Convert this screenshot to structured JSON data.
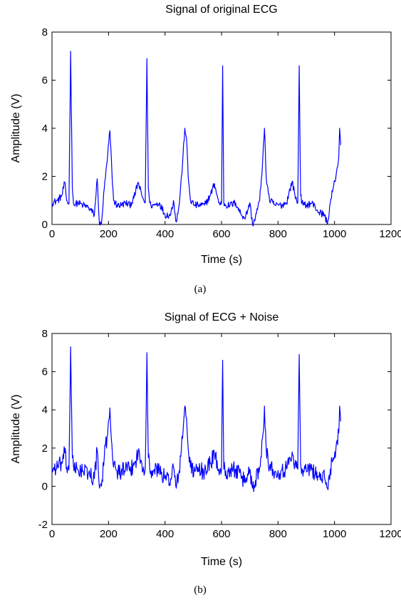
{
  "chart_data": [
    {
      "type": "line",
      "title": "Signal of original ECG",
      "xlabel": "Time (s)",
      "ylabel": "Amplitude (V)",
      "caption": "(a)",
      "xlim": [
        0,
        1200
      ],
      "ylim": [
        0,
        8
      ],
      "xticks": [
        0,
        200,
        400,
        600,
        800,
        1000,
        1200
      ],
      "yticks": [
        0,
        2,
        4,
        6,
        8
      ],
      "grid": false,
      "color": "#0000ff",
      "noise": 0.15,
      "x": [
        0,
        20,
        35,
        45,
        52,
        60,
        66,
        72,
        78,
        90,
        110,
        130,
        150,
        160,
        168,
        175,
        185,
        195,
        205,
        212,
        218,
        230,
        245,
        260,
        275,
        290,
        305,
        318,
        330,
        336,
        341,
        346,
        350,
        360,
        380,
        400,
        420,
        430,
        440,
        450,
        462,
        470,
        476,
        482,
        490,
        505,
        520,
        540,
        560,
        575,
        590,
        600,
        604,
        608,
        615,
        630,
        650,
        670,
        685,
        700,
        710,
        720,
        735,
        745,
        752,
        758,
        770,
        790,
        810,
        830,
        850,
        860,
        870,
        875,
        880,
        885,
        890,
        900,
        920,
        945,
        965,
        975,
        985,
        995,
        1005,
        1015,
        1018,
        1022
      ],
      "y": [
        0.9,
        1.0,
        1.2,
        1.75,
        1.0,
        0.85,
        7.2,
        1.5,
        0.8,
        0.9,
        0.8,
        0.7,
        0.4,
        1.9,
        0.0,
        0.0,
        1.5,
        2.6,
        3.9,
        2.2,
        1.0,
        0.8,
        0.8,
        0.9,
        0.8,
        1.1,
        1.75,
        1.2,
        0.9,
        6.9,
        1.5,
        0.9,
        0.8,
        0.8,
        0.9,
        0.4,
        0.4,
        1.0,
        0.1,
        0.8,
        2.5,
        4.0,
        3.6,
        2.0,
        1.0,
        0.8,
        0.8,
        0.8,
        1.2,
        1.7,
        0.9,
        0.85,
        6.6,
        0.9,
        0.8,
        0.8,
        0.9,
        0.4,
        0.3,
        0.9,
        0.0,
        0.3,
        1.0,
        2.5,
        4.0,
        2.0,
        1.0,
        0.8,
        0.8,
        0.9,
        1.8,
        1.2,
        0.9,
        6.6,
        1.2,
        0.9,
        0.8,
        0.8,
        0.9,
        0.5,
        0.4,
        0.0,
        0.9,
        1.5,
        2.0,
        2.8,
        4.0,
        3.3
      ]
    },
    {
      "type": "line",
      "title": "Signal of ECG + Noise",
      "xlabel": "Time (s)",
      "ylabel": "Amplitude (V)",
      "caption": "(b)",
      "xlim": [
        0,
        1200
      ],
      "ylim": [
        -2,
        8
      ],
      "xticks": [
        0,
        200,
        400,
        600,
        800,
        1000,
        1200
      ],
      "yticks": [
        -2,
        0,
        2,
        4,
        6,
        8
      ],
      "grid": false,
      "color": "#0000ff",
      "noise": 0.45,
      "x": [
        0,
        20,
        35,
        45,
        52,
        60,
        66,
        72,
        78,
        90,
        110,
        130,
        150,
        160,
        168,
        175,
        185,
        195,
        205,
        212,
        218,
        230,
        245,
        260,
        275,
        290,
        305,
        318,
        330,
        336,
        341,
        346,
        350,
        360,
        380,
        400,
        420,
        430,
        440,
        450,
        462,
        470,
        476,
        482,
        490,
        505,
        520,
        540,
        560,
        575,
        590,
        600,
        604,
        608,
        615,
        630,
        650,
        670,
        685,
        700,
        710,
        720,
        735,
        745,
        752,
        758,
        770,
        790,
        810,
        830,
        850,
        860,
        870,
        875,
        880,
        885,
        890,
        900,
        920,
        945,
        965,
        975,
        985,
        995,
        1005,
        1015,
        1018,
        1022
      ],
      "y": [
        0.9,
        1.0,
        1.2,
        1.75,
        1.0,
        0.85,
        7.3,
        1.5,
        0.8,
        0.9,
        0.8,
        0.7,
        0.4,
        1.9,
        -0.1,
        0.0,
        1.5,
        2.6,
        4.1,
        2.2,
        1.0,
        0.8,
        0.8,
        0.9,
        0.8,
        1.1,
        1.75,
        1.2,
        0.9,
        7.0,
        1.5,
        0.9,
        0.8,
        0.8,
        0.9,
        0.4,
        0.4,
        1.0,
        -0.1,
        0.8,
        2.5,
        4.2,
        3.6,
        2.0,
        1.0,
        0.8,
        0.8,
        0.8,
        1.2,
        1.7,
        0.9,
        0.85,
        6.6,
        0.9,
        0.8,
        0.8,
        0.9,
        0.4,
        0.3,
        0.9,
        -0.1,
        0.3,
        1.0,
        2.5,
        4.2,
        2.0,
        1.0,
        0.8,
        0.8,
        0.9,
        1.8,
        1.2,
        0.9,
        6.9,
        1.2,
        0.9,
        0.8,
        0.8,
        0.9,
        0.5,
        0.4,
        -0.1,
        0.9,
        1.5,
        2.0,
        2.8,
        4.2,
        3.4
      ]
    }
  ]
}
